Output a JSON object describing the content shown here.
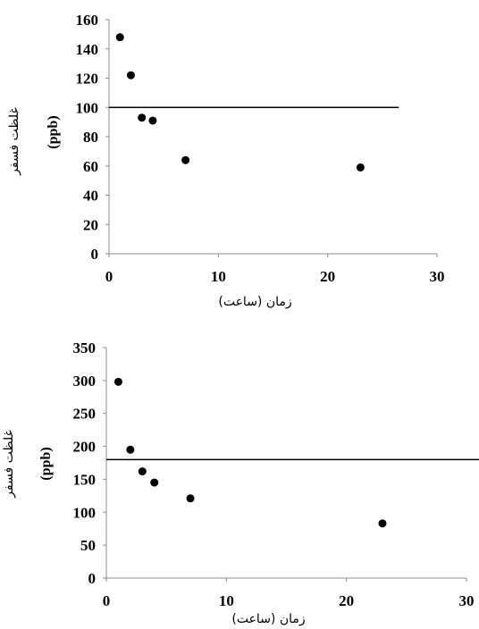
{
  "chart_data": [
    {
      "type": "scatter",
      "title": "",
      "ylabel": "غلظت فسفر",
      "yunit": "(ppb)",
      "xlabel": "زمان (ساعت)",
      "xlim": [
        0,
        30
      ],
      "ylim": [
        0,
        160
      ],
      "xticks": [
        "0",
        "10",
        "20",
        "30"
      ],
      "yticks": [
        "0",
        "20",
        "40",
        "60",
        "80",
        "100",
        "120",
        "140",
        "160"
      ],
      "grid": false,
      "legend": "none",
      "reference_line": {
        "y": 100,
        "x_end": 26.5
      },
      "points": [
        {
          "x": 1,
          "y": 148
        },
        {
          "x": 2,
          "y": 122
        },
        {
          "x": 3,
          "y": 93
        },
        {
          "x": 4,
          "y": 91
        },
        {
          "x": 7,
          "y": 64
        },
        {
          "x": 23,
          "y": 59
        }
      ]
    },
    {
      "type": "scatter",
      "title": "",
      "ylabel": "غلظت فسفر",
      "yunit": "(ppb)",
      "xlabel": "زمان (ساعت)",
      "xlim": [
        0,
        30
      ],
      "ylim": [
        0,
        350
      ],
      "xticks": [
        "0",
        "10",
        "20",
        "30"
      ],
      "yticks": [
        "0",
        "50",
        "100",
        "150",
        "200",
        "250",
        "300",
        "350"
      ],
      "grid": false,
      "legend": "none",
      "reference_line": {
        "y": 180,
        "x_end": 31.5
      },
      "points": [
        {
          "x": 1,
          "y": 298
        },
        {
          "x": 2,
          "y": 195
        },
        {
          "x": 3,
          "y": 162
        },
        {
          "x": 4,
          "y": 145
        },
        {
          "x": 7,
          "y": 121
        },
        {
          "x": 23,
          "y": 83
        }
      ]
    }
  ],
  "colors": {
    "marker": "#000000",
    "axis": "#8c8c8c",
    "reference_line": "#000000"
  }
}
